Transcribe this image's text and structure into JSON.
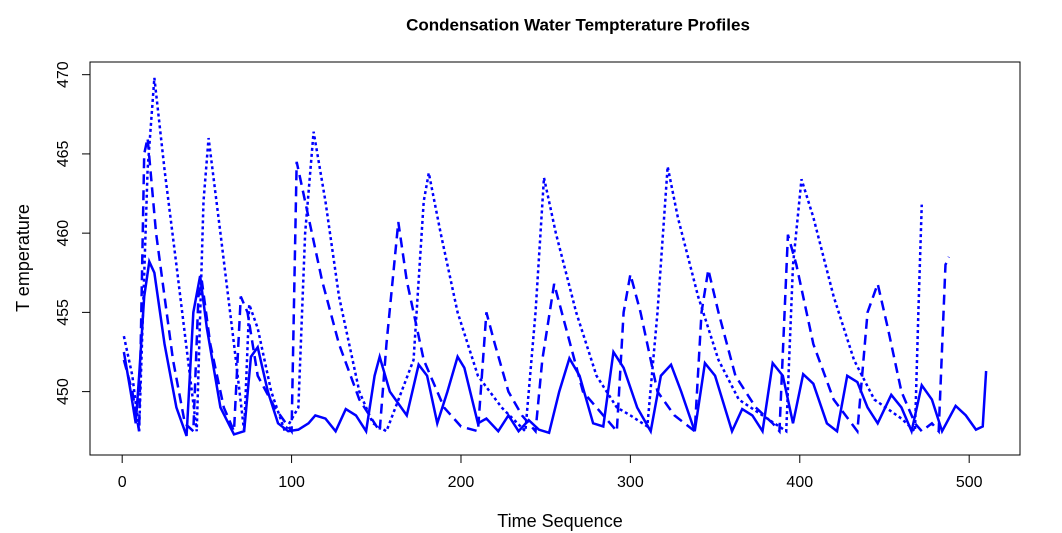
{
  "chart_data": {
    "type": "line",
    "title": "Condensation Water Tempterature Profiles",
    "x_label": "Time Sequence",
    "y_label": "T emperature",
    "xlim": [
      -19,
      530
    ],
    "ylim": [
      446,
      470.8
    ],
    "xticks": [
      0,
      100,
      200,
      300,
      400,
      500
    ],
    "yticks": [
      450,
      455,
      460,
      465,
      470
    ],
    "series": [
      {
        "color": "#0000ff",
        "style": "solid",
        "x": [
          1,
          5,
          8,
          10,
          13,
          16,
          19,
          25,
          32,
          38,
          42,
          46,
          50,
          58,
          66,
          72,
          76,
          80,
          86,
          92,
          98,
          104,
          110,
          114,
          120,
          126,
          132,
          138,
          144,
          149,
          152,
          158,
          168,
          175,
          180,
          186,
          192,
          198,
          202,
          210,
          215,
          222,
          228,
          234,
          240,
          246,
          252,
          258,
          264,
          270,
          278,
          284,
          290,
          296,
          304,
          312,
          318,
          324,
          330,
          338,
          344,
          350,
          360,
          366,
          372,
          378,
          384,
          390,
          396,
          402,
          408,
          416,
          422,
          428,
          434,
          440,
          446,
          454,
          460,
          466,
          472,
          478,
          484,
          492,
          498,
          504,
          508,
          510
        ],
        "values": [
          452.5,
          450,
          448,
          451,
          456,
          458.2,
          457.5,
          453,
          449,
          447.2,
          455,
          457.3,
          454,
          449,
          447.3,
          447.5,
          452.2,
          452.8,
          450,
          448,
          447.5,
          447.6,
          448,
          448.5,
          448.3,
          447.5,
          448.9,
          448.5,
          447.5,
          451,
          452.2,
          450,
          448.5,
          451.7,
          451,
          448,
          450,
          452.2,
          451.5,
          448,
          448.3,
          447.5,
          448.5,
          447.5,
          448.2,
          447.6,
          447.4,
          450,
          452.1,
          451,
          448,
          447.8,
          452.5,
          451.5,
          449,
          447.5,
          451,
          451.7,
          450,
          447.5,
          451.8,
          451,
          447.5,
          448.9,
          448.5,
          447.5,
          451.8,
          451,
          448,
          451.1,
          450.5,
          448,
          447.5,
          451,
          450.6,
          449,
          448,
          449.8,
          449,
          447.5,
          450.4,
          449.5,
          447.5,
          449.1,
          448.5,
          447.6,
          447.8,
          451.3
        ]
      },
      {
        "color": "#0000ff",
        "style": "dashed",
        "x": [
          1,
          6,
          10,
          13,
          15,
          20,
          30,
          37,
          42,
          45,
          47,
          52,
          60,
          66,
          70,
          74,
          80,
          90,
          100,
          103,
          106,
          112,
          118,
          128,
          140,
          152,
          156,
          163,
          168,
          178,
          190,
          200,
          210,
          215,
          220,
          228,
          236,
          244,
          248,
          255,
          262,
          272,
          284,
          292,
          296,
          300,
          306,
          316,
          326,
          338,
          342,
          346,
          352,
          362,
          374,
          384,
          388,
          393,
          398,
          408,
          420,
          434,
          440,
          446,
          452,
          460,
          468,
          472,
          478,
          482,
          486,
          488
        ],
        "values": [
          452,
          450,
          447.5,
          465,
          466,
          460,
          452,
          448,
          447.5,
          456,
          457,
          453,
          449,
          447.5,
          456,
          455,
          451,
          449,
          447.5,
          464.5,
          463,
          460,
          457,
          453,
          449.5,
          447.5,
          453,
          460.7,
          457,
          452,
          449,
          447.8,
          447.5,
          455,
          453,
          450,
          448.5,
          447.5,
          452,
          456.8,
          454,
          450,
          448.5,
          447.5,
          455,
          457.4,
          455,
          450,
          448.5,
          447.5,
          455,
          457.7,
          455,
          451,
          449,
          448,
          447.5,
          459.9,
          458,
          453,
          449.5,
          447.5,
          455,
          456.8,
          454,
          450,
          448,
          447.5,
          448,
          447.5,
          458,
          458.5
        ]
      },
      {
        "color": "#0000ff",
        "style": "dotted",
        "x": [
          1,
          6,
          10,
          15,
          19,
          25,
          32,
          40,
          44,
          48,
          51,
          58,
          66,
          72,
          75,
          80,
          88,
          96,
          104,
          108,
          113,
          120,
          128,
          140,
          148,
          156,
          172,
          178,
          181,
          188,
          198,
          210,
          224,
          238,
          244,
          249,
          256,
          268,
          280,
          292,
          300,
          310,
          316,
          322,
          328,
          340,
          352,
          364,
          378,
          392,
          396,
          401,
          408,
          420,
          432,
          444,
          460,
          468,
          470,
          472
        ],
        "values": [
          453.5,
          451,
          447.5,
          464,
          469.8,
          464,
          458,
          451,
          447.5,
          462,
          466,
          460,
          453,
          447.5,
          455.5,
          454,
          450,
          447.5,
          449,
          460,
          466.4,
          462,
          456,
          450,
          448,
          447.5,
          452,
          462,
          463.8,
          460,
          455,
          451,
          449,
          447.5,
          455,
          463.5,
          460,
          455,
          451,
          449,
          448.5,
          447.8,
          455,
          464.2,
          461,
          456,
          452,
          449.5,
          448.5,
          447.5,
          458,
          463.4,
          461,
          456,
          452,
          449.5,
          448.3,
          447.5,
          455,
          461.8
        ]
      }
    ]
  }
}
